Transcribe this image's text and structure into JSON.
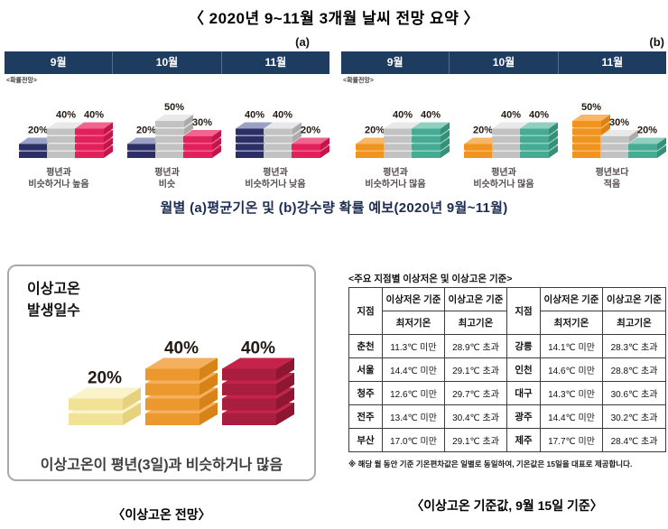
{
  "title": "〈 2020년 9~11월 3개월 날씨 전망 요약 〉",
  "figure_caption": "월별 (a)평균기온 및 (b)강수량 확률 예보(2020년 9월~11월)",
  "captions": {
    "left": "〈이상고온 전망〉",
    "right": "〈이상고온 기준값, 9월 15일 기준〉"
  },
  "colors": {
    "header_navy": "#1e3b60",
    "navy": {
      "front": "#2c2f63",
      "top": "#9aa0c6",
      "side": "#474d85"
    },
    "gray": {
      "front": "#c2c2c2",
      "top": "#e9e9e9",
      "side": "#ababab"
    },
    "pink": {
      "front": "#e2205b",
      "top": "#f1648d",
      "side": "#c2154a"
    },
    "orange": {
      "front": "#f0941f",
      "top": "#f7b765",
      "side": "#de8312"
    },
    "teal": {
      "front": "#45ab93",
      "top": "#8fd0c0",
      "side": "#349078"
    },
    "paleyellow": {
      "front": "#f2e298",
      "top": "#faf2c8",
      "side": "#e6d27c"
    },
    "bigorange": {
      "front": "#eb992f",
      "top": "#f4b05c",
      "side": "#d78317"
    },
    "crimson": {
      "front": "#a91e3f",
      "top": "#c52349",
      "side": "#8e1631"
    }
  },
  "chart_data": [
    {
      "type": "bar",
      "id": "temperature-probability",
      "panel_tag": "(a)",
      "note": "<확률전망>",
      "unit": "%",
      "groups": [
        {
          "month": "9월",
          "bars": [
            {
              "pct": 20,
              "color_key": "navy"
            },
            {
              "pct": 40,
              "color_key": "gray"
            },
            {
              "pct": 40,
              "color_key": "pink"
            }
          ],
          "outlook_lines": [
            "평년과",
            "비슷하거나 높음"
          ]
        },
        {
          "month": "10월",
          "bars": [
            {
              "pct": 20,
              "color_key": "navy"
            },
            {
              "pct": 50,
              "color_key": "gray"
            },
            {
              "pct": 30,
              "color_key": "pink"
            }
          ],
          "outlook_lines": [
            "평년과",
            "비슷"
          ]
        },
        {
          "month": "11월",
          "bars": [
            {
              "pct": 40,
              "color_key": "navy"
            },
            {
              "pct": 40,
              "color_key": "gray"
            },
            {
              "pct": 20,
              "color_key": "pink"
            }
          ],
          "outlook_lines": [
            "평년과",
            "비슷하거나 낮음"
          ]
        }
      ]
    },
    {
      "type": "bar",
      "id": "precipitation-probability",
      "panel_tag": "(b)",
      "note": "<확률전망>",
      "unit": "%",
      "groups": [
        {
          "month": "9월",
          "bars": [
            {
              "pct": 20,
              "color_key": "orange"
            },
            {
              "pct": 40,
              "color_key": "gray"
            },
            {
              "pct": 40,
              "color_key": "teal"
            }
          ],
          "outlook_lines": [
            "평년과",
            "비슷하거나 많음"
          ]
        },
        {
          "month": "10월",
          "bars": [
            {
              "pct": 20,
              "color_key": "orange"
            },
            {
              "pct": 40,
              "color_key": "gray"
            },
            {
              "pct": 40,
              "color_key": "teal"
            }
          ],
          "outlook_lines": [
            "평년과",
            "비슷하거나 많음"
          ]
        },
        {
          "month": "11월",
          "bars": [
            {
              "pct": 50,
              "color_key": "orange"
            },
            {
              "pct": 30,
              "color_key": "gray"
            },
            {
              "pct": 20,
              "color_key": "teal"
            }
          ],
          "outlook_lines": [
            "평년보다",
            "적음"
          ]
        }
      ]
    },
    {
      "type": "bar",
      "id": "abnormal-high-temp-days",
      "title": "이상고온\n발생일수",
      "unit": "%",
      "bars": [
        {
          "pct": 20,
          "color_key": "paleyellow"
        },
        {
          "pct": 40,
          "color_key": "bigorange"
        },
        {
          "pct": 40,
          "color_key": "crimson"
        }
      ],
      "summary": "이상고온이 평년(3일)과 비슷하거나 많음"
    },
    {
      "type": "table",
      "id": "abnormal-temp-criteria",
      "title": "<주요 지점별 이상저온 및 이상고온 기준>",
      "header": {
        "station": "지점",
        "low": "이상저온 기준",
        "low_sub": "최저기온",
        "high": "이상고온 기준",
        "high_sub": "최고기온"
      },
      "rows": [
        [
          "춘천",
          "11.3℃ 미만",
          "28.9℃ 초과",
          "강릉",
          "14.1℃ 미만",
          "28.3℃ 초과"
        ],
        [
          "서울",
          "14.4℃ 미만",
          "29.1℃ 초과",
          "인천",
          "14.6℃ 미만",
          "28.8℃ 초과"
        ],
        [
          "청주",
          "12.6℃ 미만",
          "29.7℃ 초과",
          "대구",
          "14.3℃ 미만",
          "30.6℃ 초과"
        ],
        [
          "전주",
          "13.4℃ 미만",
          "30.4℃ 초과",
          "광주",
          "14.4℃ 미만",
          "30.2℃ 초과"
        ],
        [
          "부산",
          "17.0℃ 미만",
          "29.1℃ 초과",
          "제주",
          "17.7℃ 미만",
          "28.4℃ 초과"
        ]
      ],
      "footnote": "※ 해당 월 동안 기준 기온편차값은 일별로 동일하여, 기온값은 15일을 대표로 제공합니다."
    }
  ]
}
